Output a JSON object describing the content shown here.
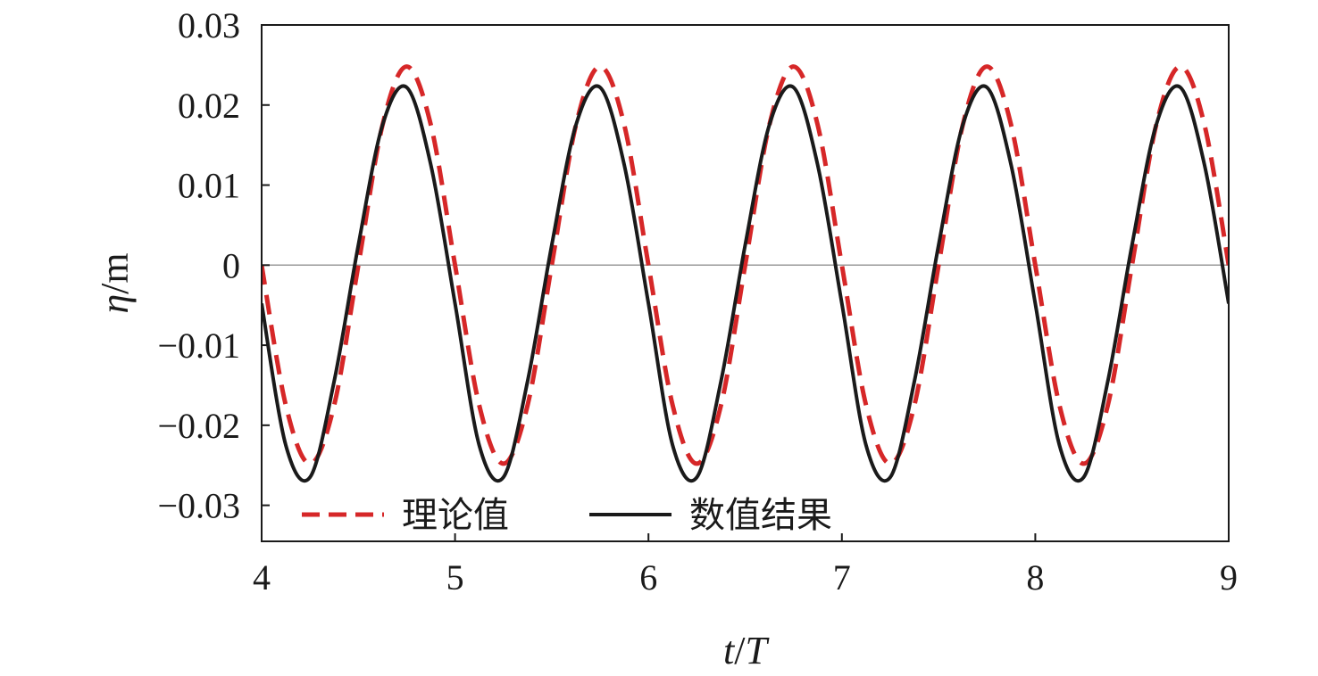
{
  "chart_data": {
    "type": "line",
    "title": "",
    "xlabel": {
      "var": "t",
      "sep": "/",
      "unit": "T"
    },
    "ylabel": {
      "var": "η",
      "sep": "/",
      "unit": "m"
    },
    "xlim": [
      4,
      9
    ],
    "ylim": [
      -0.0345,
      0.03
    ],
    "x_ticks": [
      4,
      5,
      6,
      7,
      8,
      9
    ],
    "x_tick_labels": [
      "4",
      "5",
      "6",
      "7",
      "8",
      "9"
    ],
    "y_ticks": [
      0.03,
      0.02,
      0.01,
      0,
      -0.01,
      -0.02,
      -0.03
    ],
    "y_tick_labels": [
      "0.03",
      "0.02",
      "0.01",
      "0",
      "−0.01",
      "−0.02",
      "−0.03"
    ],
    "zero_line": true,
    "grid": false,
    "legend_position": "bottom-left",
    "series": [
      {
        "name": "理论值",
        "style": "dashed",
        "color": "#d62728",
        "x": [
          4.0,
          4.125,
          4.25,
          4.375,
          4.5,
          4.625,
          4.75,
          4.875,
          5.0,
          5.125,
          5.25,
          5.375,
          5.5,
          5.625,
          5.75,
          5.875,
          6.0,
          6.125,
          6.25,
          6.375,
          6.5,
          6.625,
          6.75,
          6.875,
          7.0,
          7.125,
          7.25,
          7.375,
          7.5,
          7.625,
          7.75,
          7.875,
          8.0,
          8.125,
          8.25,
          8.375,
          8.5,
          8.625,
          8.75,
          8.875,
          9.0
        ],
        "y": [
          0.0,
          -0.0175,
          -0.0248,
          -0.0175,
          0.0,
          0.0175,
          0.0248,
          0.0175,
          0.0,
          -0.0175,
          -0.0248,
          -0.0175,
          0.0,
          0.0175,
          0.0248,
          0.0175,
          0.0,
          -0.0175,
          -0.0248,
          -0.0175,
          0.0,
          0.0175,
          0.0248,
          0.0175,
          0.0,
          -0.0175,
          -0.0248,
          -0.0175,
          0.0,
          0.0175,
          0.0248,
          0.0175,
          0.0,
          -0.0175,
          -0.0248,
          -0.0175,
          0.0,
          0.0175,
          0.0248,
          0.0175,
          0.0
        ]
      },
      {
        "name": "数值结果",
        "style": "solid",
        "color": "#1a1a1a",
        "x": [
          4.0,
          4.125,
          4.25,
          4.375,
          4.5,
          4.625,
          4.75,
          4.875,
          5.0,
          5.125,
          5.25,
          5.375,
          5.5,
          5.625,
          5.75,
          5.875,
          6.0,
          6.125,
          6.25,
          6.375,
          6.5,
          6.625,
          6.75,
          6.875,
          7.0,
          7.125,
          7.25,
          7.375,
          7.5,
          7.625,
          7.75,
          7.875,
          8.0,
          8.125,
          8.25,
          8.375,
          8.5,
          8.625,
          8.75,
          8.875,
          9.0
        ],
        "y": [
          -0.0048,
          -0.0225,
          -0.0265,
          -0.0145,
          0.0025,
          0.0175,
          0.0222,
          0.0125,
          -0.0048,
          -0.0225,
          -0.0265,
          -0.0145,
          0.0025,
          0.0175,
          0.0222,
          0.0125,
          -0.0048,
          -0.0225,
          -0.0265,
          -0.0145,
          0.0025,
          0.0175,
          0.0222,
          0.0125,
          -0.0048,
          -0.0225,
          -0.0265,
          -0.0145,
          0.0025,
          0.0175,
          0.0222,
          0.0125,
          -0.0048,
          -0.0225,
          -0.0265,
          -0.0145,
          0.0025,
          0.0175,
          0.0222,
          0.0125,
          -0.0048
        ]
      }
    ]
  }
}
